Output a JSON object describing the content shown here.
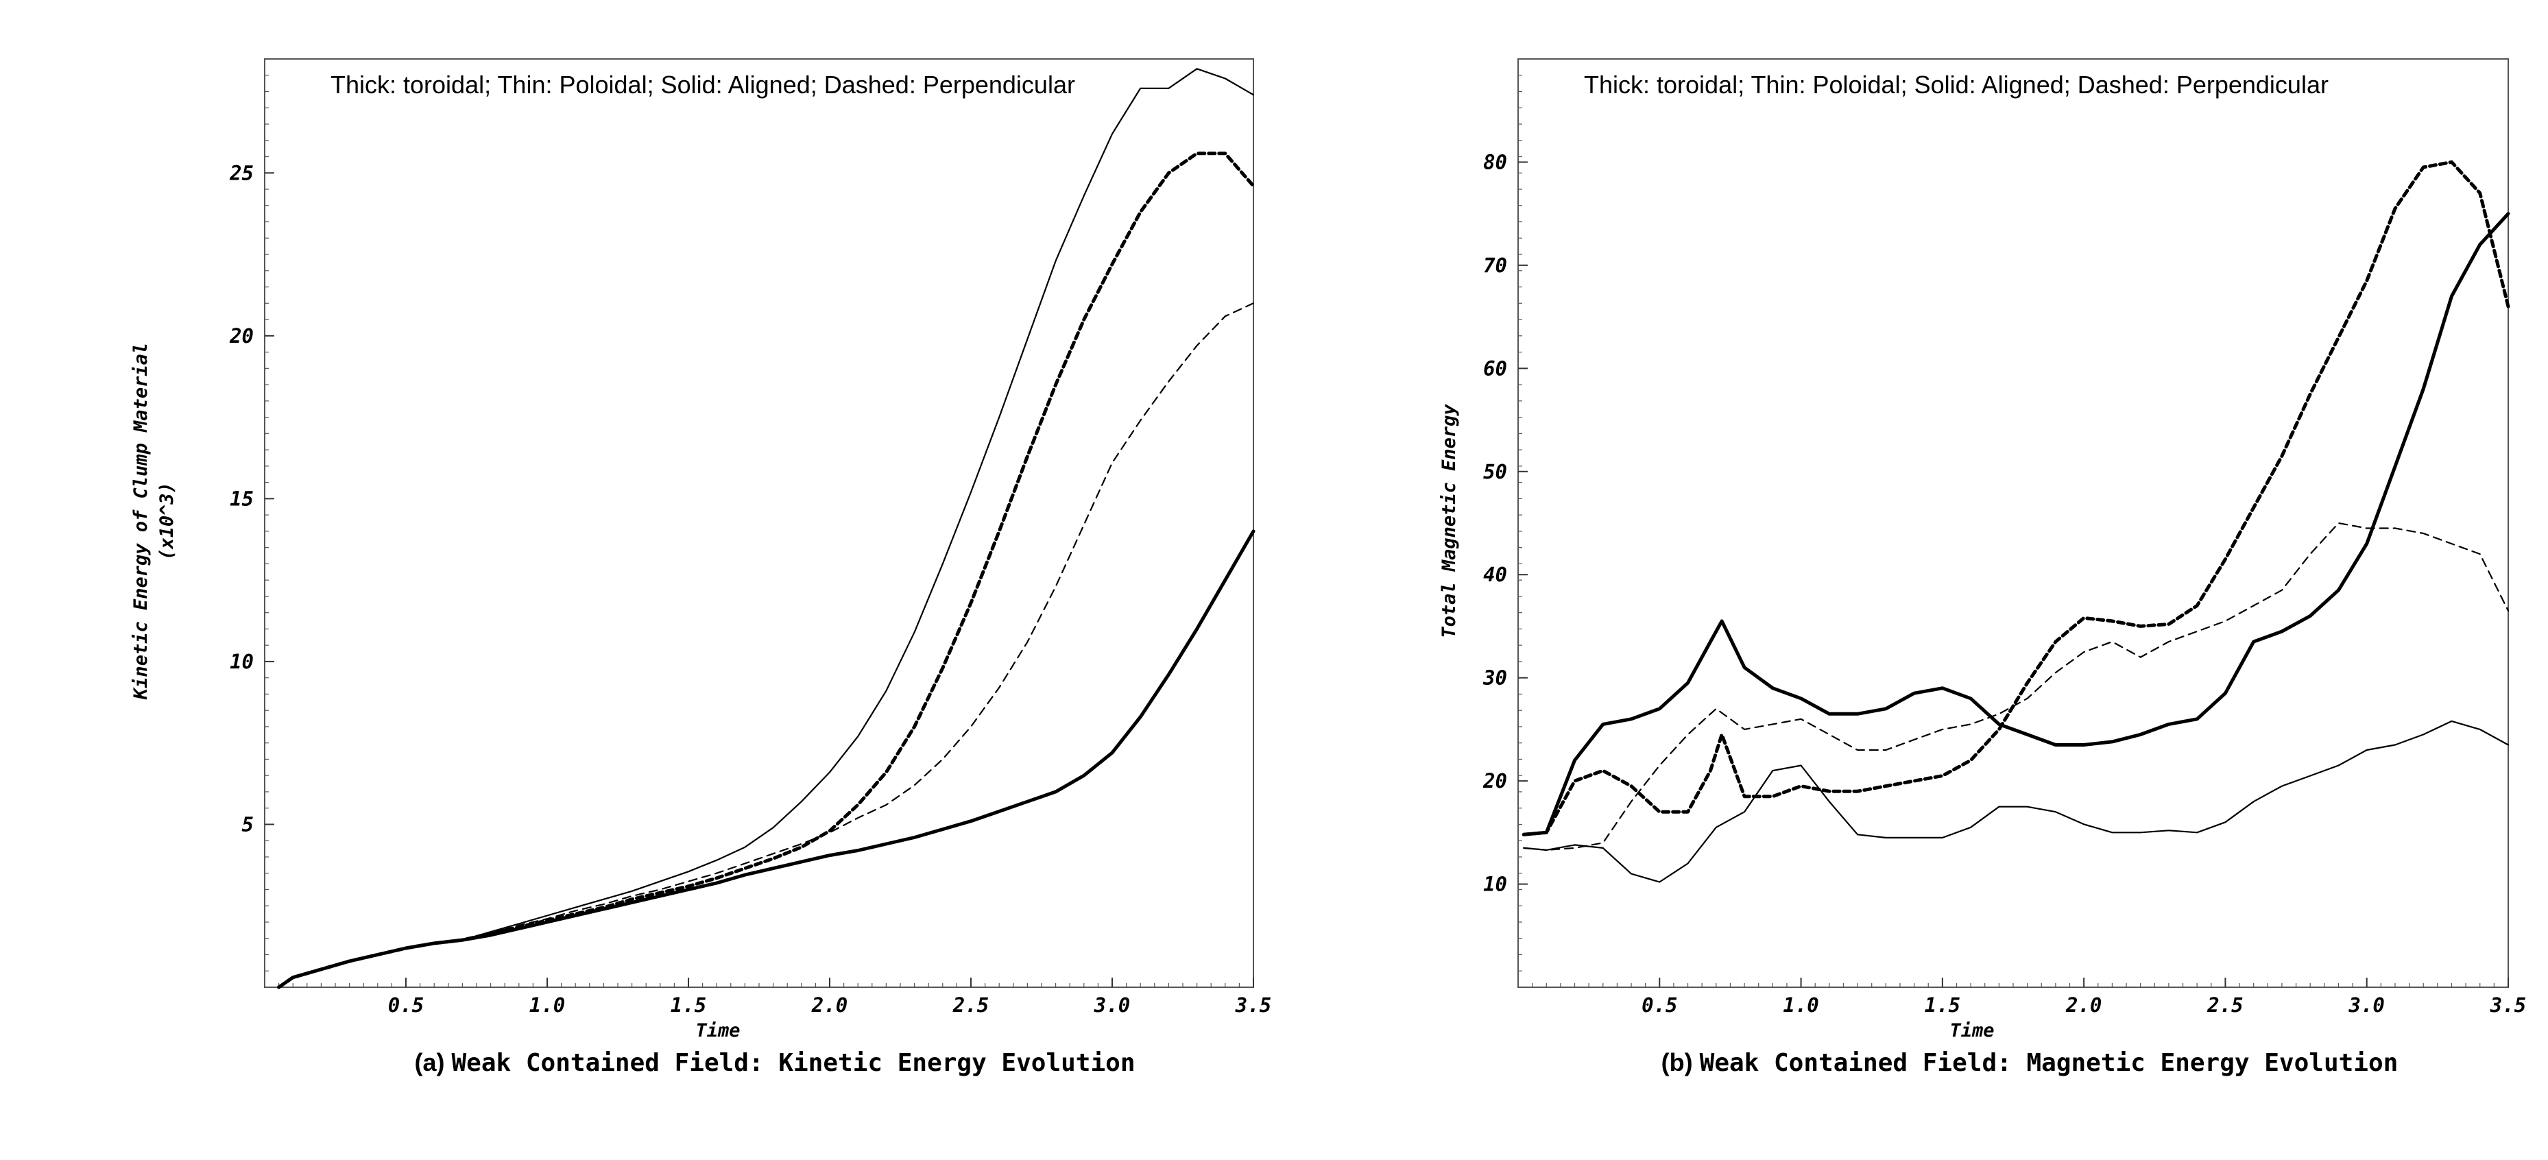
{
  "chart_data": [
    {
      "type": "line",
      "id": "a",
      "annotation": "Thick: toroidal; Thin: Poloidal; Solid: Aligned; Dashed: Perpendicular",
      "xlabel": "Time",
      "ylabel_lines": [
        "Kinetic Energy of Clump Material",
        "(x10^3)"
      ],
      "caption_prefix": "(a)",
      "caption_text": "Weak Contained Field: Kinetic Energy Evolution",
      "xlim": [
        0.0,
        3.5
      ],
      "ylim": [
        0,
        28.5
      ],
      "xticks": [
        0.5,
        1.0,
        1.5,
        2.0,
        2.5,
        3.0,
        3.5
      ],
      "xtick_labels": [
        "0.5",
        "1.0",
        "1.5",
        "2.0",
        "2.5",
        "3.0",
        "3.5"
      ],
      "yticks": [
        5,
        10,
        15,
        20,
        25
      ],
      "ytick_labels": [
        "5",
        "10",
        "15",
        "20",
        "25"
      ],
      "series": [
        {
          "name": "Toroidal Aligned",
          "style": "thick-solid",
          "x": [
            0.05,
            0.1,
            0.2,
            0.3,
            0.4,
            0.5,
            0.6,
            0.7,
            0.8,
            0.9,
            1.0,
            1.1,
            1.2,
            1.3,
            1.4,
            1.5,
            1.6,
            1.7,
            1.8,
            1.9,
            2.0,
            2.1,
            2.2,
            2.3,
            2.4,
            2.5,
            2.6,
            2.7,
            2.8,
            2.9,
            3.0,
            3.1,
            3.2,
            3.3,
            3.4,
            3.5
          ],
          "y": [
            0.0,
            0.3,
            0.55,
            0.8,
            1.0,
            1.2,
            1.35,
            1.45,
            1.6,
            1.8,
            2.0,
            2.2,
            2.4,
            2.6,
            2.8,
            3.0,
            3.2,
            3.45,
            3.65,
            3.85,
            4.05,
            4.2,
            4.4,
            4.6,
            4.85,
            5.1,
            5.4,
            5.7,
            6.0,
            6.5,
            7.2,
            8.3,
            9.6,
            11.0,
            12.5,
            14.0
          ]
        },
        {
          "name": "Poloidal Aligned",
          "style": "thin-solid",
          "x": [
            0.05,
            0.1,
            0.2,
            0.3,
            0.4,
            0.5,
            0.6,
            0.7,
            0.8,
            0.9,
            1.0,
            1.1,
            1.2,
            1.3,
            1.4,
            1.5,
            1.6,
            1.7,
            1.8,
            1.9,
            2.0,
            2.1,
            2.2,
            2.3,
            2.4,
            2.5,
            2.6,
            2.7,
            2.8,
            2.9,
            3.0,
            3.1,
            3.2,
            3.3,
            3.4,
            3.5
          ],
          "y": [
            0.0,
            0.3,
            0.55,
            0.8,
            1.0,
            1.2,
            1.35,
            1.45,
            1.7,
            1.95,
            2.2,
            2.45,
            2.7,
            2.95,
            3.25,
            3.55,
            3.9,
            4.3,
            4.9,
            5.7,
            6.6,
            7.7,
            9.1,
            10.9,
            13.0,
            15.2,
            17.5,
            19.9,
            22.3,
            24.3,
            26.2,
            27.6,
            27.6,
            28.2,
            27.9,
            27.4
          ]
        },
        {
          "name": "Toroidal Perpendicular",
          "style": "thick-dashed",
          "x": [
            0.05,
            0.1,
            0.2,
            0.3,
            0.4,
            0.5,
            0.6,
            0.7,
            0.8,
            0.9,
            1.0,
            1.1,
            1.2,
            1.3,
            1.4,
            1.5,
            1.6,
            1.7,
            1.8,
            1.9,
            2.0,
            2.1,
            2.2,
            2.3,
            2.4,
            2.5,
            2.6,
            2.7,
            2.8,
            2.9,
            3.0,
            3.1,
            3.2,
            3.3,
            3.4,
            3.5
          ],
          "y": [
            0.0,
            0.3,
            0.55,
            0.8,
            1.0,
            1.2,
            1.35,
            1.45,
            1.65,
            1.85,
            2.05,
            2.25,
            2.45,
            2.7,
            2.9,
            3.1,
            3.35,
            3.65,
            3.95,
            4.3,
            4.8,
            5.6,
            6.6,
            8.0,
            9.8,
            11.8,
            14.0,
            16.3,
            18.5,
            20.5,
            22.2,
            23.8,
            25.0,
            25.6,
            25.6,
            24.6
          ]
        },
        {
          "name": "Poloidal Perpendicular",
          "style": "thin-dashed",
          "x": [
            0.05,
            0.1,
            0.2,
            0.3,
            0.4,
            0.5,
            0.6,
            0.7,
            0.8,
            0.9,
            1.0,
            1.1,
            1.2,
            1.3,
            1.4,
            1.5,
            1.6,
            1.7,
            1.8,
            1.9,
            2.0,
            2.1,
            2.2,
            2.3,
            2.4,
            2.5,
            2.6,
            2.7,
            2.8,
            2.9,
            3.0,
            3.1,
            3.2,
            3.3,
            3.4,
            3.5
          ],
          "y": [
            0.0,
            0.3,
            0.55,
            0.8,
            1.0,
            1.2,
            1.35,
            1.45,
            1.65,
            1.9,
            2.1,
            2.35,
            2.55,
            2.8,
            3.0,
            3.25,
            3.5,
            3.8,
            4.1,
            4.4,
            4.75,
            5.2,
            5.6,
            6.2,
            7.0,
            8.0,
            9.2,
            10.6,
            12.3,
            14.2,
            16.1,
            17.4,
            18.6,
            19.7,
            20.6,
            21.0
          ]
        }
      ]
    },
    {
      "type": "line",
      "id": "b",
      "annotation": "Thick: toroidal; Thin: Poloidal; Solid: Aligned; Dashed: Perpendicular",
      "xlabel": "Time",
      "ylabel_lines": [
        "Total Magnetic Energy"
      ],
      "caption_prefix": "(b)",
      "caption_text": "Weak Contained Field: Magnetic Energy Evolution",
      "xlim": [
        0.0,
        3.5
      ],
      "ylim": [
        0,
        90
      ],
      "xticks": [
        0.5,
        1.0,
        1.5,
        2.0,
        2.5,
        3.0,
        3.5
      ],
      "xtick_labels": [
        "0.5",
        "1.0",
        "1.5",
        "2.0",
        "2.5",
        "3.0",
        "3.5"
      ],
      "yticks": [
        10,
        20,
        30,
        40,
        50,
        60,
        70,
        80
      ],
      "ytick_labels": [
        "10",
        "20",
        "30",
        "40",
        "50",
        "60",
        "70",
        "80"
      ],
      "series": [
        {
          "name": "Toroidal Aligned",
          "style": "thick-solid",
          "x": [
            0.02,
            0.1,
            0.2,
            0.3,
            0.4,
            0.5,
            0.6,
            0.68,
            0.72,
            0.8,
            0.9,
            1.0,
            1.1,
            1.2,
            1.3,
            1.4,
            1.5,
            1.6,
            1.7,
            1.8,
            1.9,
            2.0,
            2.1,
            2.2,
            2.3,
            2.4,
            2.5,
            2.6,
            2.7,
            2.8,
            2.9,
            3.0,
            3.1,
            3.2,
            3.3,
            3.4,
            3.5
          ],
          "y": [
            14.8,
            15.0,
            22.0,
            25.5,
            26.0,
            27.0,
            29.5,
            33.5,
            35.5,
            31.0,
            29.0,
            28.0,
            26.5,
            26.5,
            27.0,
            28.5,
            29.0,
            28.0,
            25.5,
            24.5,
            23.5,
            23.5,
            23.8,
            24.5,
            25.5,
            26.0,
            28.5,
            33.5,
            34.5,
            36.0,
            38.5,
            43.0,
            50.5,
            58.0,
            67.0,
            72.0,
            75.0
          ]
        },
        {
          "name": "Poloidal Aligned",
          "style": "thin-solid",
          "x": [
            0.02,
            0.1,
            0.2,
            0.3,
            0.4,
            0.5,
            0.6,
            0.7,
            0.8,
            0.9,
            1.0,
            1.1,
            1.2,
            1.3,
            1.4,
            1.5,
            1.6,
            1.7,
            1.8,
            1.9,
            2.0,
            2.1,
            2.2,
            2.3,
            2.4,
            2.5,
            2.6,
            2.7,
            2.8,
            2.9,
            3.0,
            3.1,
            3.2,
            3.3,
            3.4,
            3.5
          ],
          "y": [
            13.5,
            13.3,
            13.8,
            13.5,
            11.0,
            10.2,
            12.0,
            15.5,
            17.0,
            21.0,
            21.5,
            18.0,
            14.8,
            14.5,
            14.5,
            14.5,
            15.5,
            17.5,
            17.5,
            17.0,
            15.8,
            15.0,
            15.0,
            15.2,
            15.0,
            16.0,
            18.0,
            19.5,
            20.5,
            21.5,
            23.0,
            23.5,
            24.5,
            25.8,
            25.0,
            23.5
          ]
        },
        {
          "name": "Toroidal Perpendicular",
          "style": "thick-dashed",
          "x": [
            0.02,
            0.1,
            0.2,
            0.3,
            0.4,
            0.5,
            0.6,
            0.68,
            0.72,
            0.8,
            0.9,
            1.0,
            1.1,
            1.2,
            1.3,
            1.4,
            1.5,
            1.6,
            1.7,
            1.8,
            1.9,
            2.0,
            2.1,
            2.2,
            2.3,
            2.4,
            2.5,
            2.6,
            2.7,
            2.8,
            2.9,
            3.0,
            3.1,
            3.2,
            3.3,
            3.4,
            3.5
          ],
          "y": [
            14.8,
            15.0,
            20.0,
            21.0,
            19.5,
            17.0,
            17.0,
            21.0,
            24.5,
            18.5,
            18.5,
            19.5,
            19.0,
            19.0,
            19.5,
            20.0,
            20.5,
            22.0,
            25.0,
            29.5,
            33.5,
            35.8,
            35.5,
            35.0,
            35.2,
            37.0,
            41.5,
            46.5,
            51.5,
            57.5,
            63.0,
            68.5,
            75.5,
            79.5,
            80.0,
            77.0,
            66.0
          ]
        },
        {
          "name": "Poloidal Perpendicular",
          "style": "thin-dashed",
          "x": [
            0.02,
            0.1,
            0.2,
            0.3,
            0.4,
            0.5,
            0.6,
            0.7,
            0.8,
            0.9,
            1.0,
            1.1,
            1.2,
            1.3,
            1.4,
            1.5,
            1.6,
            1.7,
            1.8,
            1.9,
            2.0,
            2.1,
            2.2,
            2.3,
            2.4,
            2.5,
            2.6,
            2.7,
            2.8,
            2.9,
            3.0,
            3.1,
            3.2,
            3.3,
            3.4,
            3.5
          ],
          "y": [
            13.5,
            13.3,
            13.5,
            14.0,
            18.0,
            21.5,
            24.5,
            27.0,
            25.0,
            25.5,
            26.0,
            24.5,
            23.0,
            23.0,
            24.0,
            25.0,
            25.5,
            26.5,
            28.0,
            30.5,
            32.5,
            33.5,
            32.0,
            33.5,
            34.5,
            35.5,
            37.0,
            38.5,
            42.0,
            45.0,
            44.5,
            44.5,
            44.0,
            43.0,
            42.0,
            36.5
          ]
        }
      ]
    }
  ]
}
